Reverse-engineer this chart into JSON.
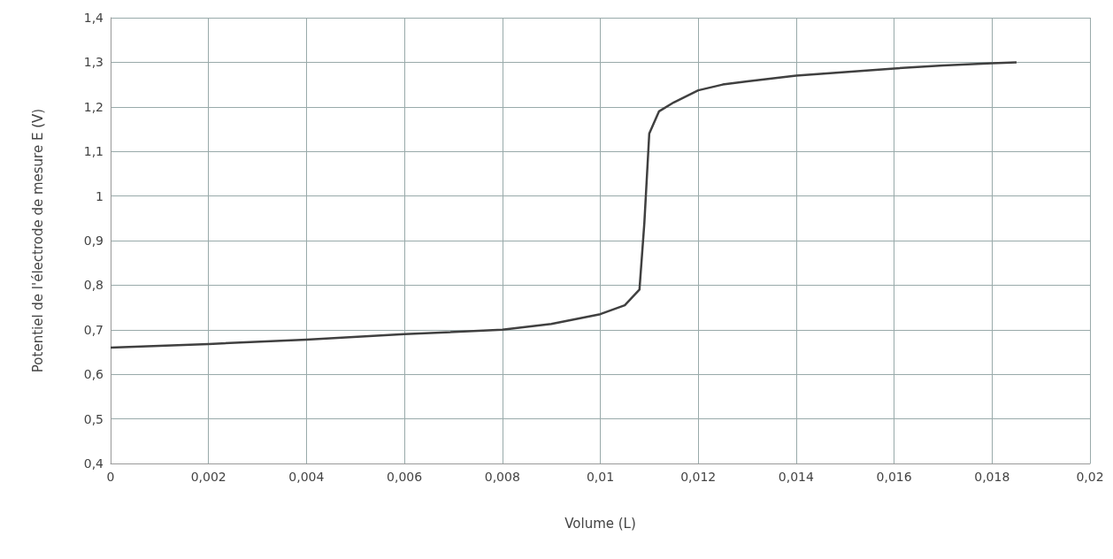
{
  "chart_data": {
    "type": "line",
    "xlabel": "Volume (L)",
    "ylabel": "Potentiel de l'électrode de mesure E (V)",
    "x": [
      0,
      0.002,
      0.004,
      0.006,
      0.008,
      0.009,
      0.01,
      0.0105,
      0.0108,
      0.0109,
      0.011,
      0.0112,
      0.0115,
      0.012,
      0.0125,
      0.013,
      0.014,
      0.015,
      0.016,
      0.017,
      0.018,
      0.0185
    ],
    "series": [
      {
        "color": "#404040",
        "values": [
          0.66,
          0.668,
          0.678,
          0.69,
          0.7,
          0.713,
          0.735,
          0.755,
          0.79,
          0.94,
          1.14,
          1.19,
          1.21,
          1.237,
          1.25,
          1.257,
          1.27,
          1.278,
          1.286,
          1.293,
          1.298,
          1.3
        ]
      }
    ],
    "xlim": [
      0,
      0.02
    ],
    "xticks": [
      {
        "value": 0,
        "label": "0"
      },
      {
        "value": 0.002,
        "label": "0,002"
      },
      {
        "value": 0.004,
        "label": "0,004"
      },
      {
        "value": 0.006,
        "label": "0,006"
      },
      {
        "value": 0.008,
        "label": "0,008"
      },
      {
        "value": 0.01,
        "label": "0,01"
      },
      {
        "value": 0.012,
        "label": "0,012"
      },
      {
        "value": 0.014,
        "label": "0,014"
      },
      {
        "value": 0.016,
        "label": "0,016"
      },
      {
        "value": 0.018,
        "label": "0,018"
      },
      {
        "value": 0.02,
        "label": "0,02"
      }
    ],
    "ylim": [
      0.4,
      1.4
    ],
    "yticks": [
      {
        "value": 0.4,
        "label": "0,4"
      },
      {
        "value": 0.5,
        "label": "0,5"
      },
      {
        "value": 0.6,
        "label": "0,6"
      },
      {
        "value": 0.7,
        "label": "0,7"
      },
      {
        "value": 0.8,
        "label": "0,8"
      },
      {
        "value": 0.9,
        "label": "0,9"
      },
      {
        "value": 1,
        "label": "1"
      },
      {
        "value": 1.1,
        "label": "1,1"
      },
      {
        "value": 1.2,
        "label": "1,2"
      },
      {
        "value": 1.3,
        "label": "1,3"
      },
      {
        "value": 1.4,
        "label": "1,4"
      }
    ],
    "grid": true,
    "marker": "none",
    "line_style": "solid"
  }
}
